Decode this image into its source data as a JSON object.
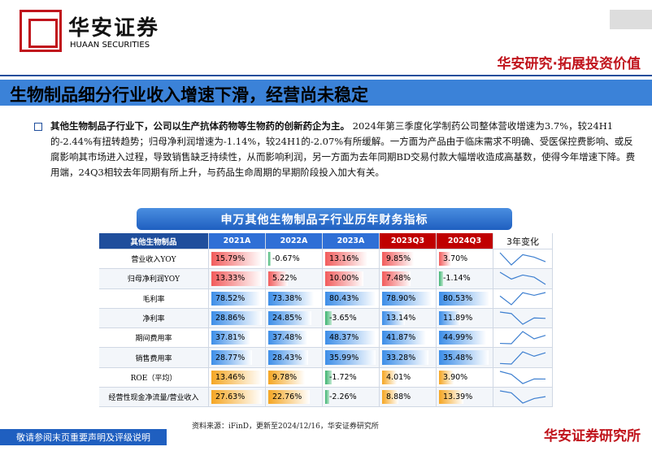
{
  "header": {
    "logo_cn": "华安证券",
    "logo_en": "HUAAN SECURITIES",
    "slogan": "华安研究·拓展投资价值"
  },
  "title": "生物制品细分行业收入增速下滑，经营尚未稳定",
  "paragraph": {
    "bold": "其他生物制品子行业下，公司以生产抗体药物等生物药的创新药企为主。",
    "text": "2024年第三季度化学制药公司整体营收增速为3.7%，较24H1的-2.44%有扭转趋势；归母净利润增速为-1.14%，较24H1的-2.07%有所缓解。一方面为产品由于临床需求不明确、受医保控费影响、或反腐影响其市场进入过程，导致销售缺乏持续性，从而影响利润，另一方面为去年同期BD交易付款大幅增收造成高基数，使得今年增速下降。费用端，24Q3相较去年同期有所上升，与药品生命周期的早期阶段投入加大有关。"
  },
  "table": {
    "title": "申万其他生物制品子行业历年财务指标",
    "columns": [
      "其他生物制品",
      "2021A",
      "2022A",
      "2023A",
      "2023Q3",
      "2024Q3",
      "3年变化"
    ],
    "rows": [
      {
        "name": "营业收入YOY",
        "values": [
          15.79,
          -0.67,
          13.16,
          9.85,
          3.7
        ],
        "value_labels": [
          "15.79%",
          "-0.67%",
          "13.16%",
          "9.85%",
          "3.70%"
        ]
      },
      {
        "name": "归母净利润YOY",
        "values": [
          13.33,
          5.22,
          10.0,
          7.48,
          -1.14
        ],
        "value_labels": [
          "13.33%",
          "5.22%",
          "10.00%",
          "7.48%",
          "-1.14%"
        ]
      },
      {
        "name": "毛利率",
        "values": [
          78.52,
          73.38,
          80.43,
          78.9,
          80.53
        ],
        "value_labels": [
          "78.52%",
          "73.38%",
          "80.43%",
          "78.90%",
          "80.53%"
        ]
      },
      {
        "name": "净利率",
        "values": [
          28.86,
          24.85,
          -3.65,
          13.14,
          11.89
        ],
        "value_labels": [
          "28.86%",
          "24.85%",
          "-3.65%",
          "13.14%",
          "11.89%"
        ]
      },
      {
        "name": "期间费用率",
        "values": [
          37.81,
          37.48,
          48.37,
          41.87,
          44.99
        ],
        "value_labels": [
          "37.81%",
          "37.48%",
          "48.37%",
          "41.87%",
          "44.99%"
        ]
      },
      {
        "name": "销售费用率",
        "values": [
          28.77,
          28.43,
          35.99,
          33.28,
          35.48
        ],
        "value_labels": [
          "28.77%",
          "28.43%",
          "35.99%",
          "33.28%",
          "35.48%"
        ]
      },
      {
        "name": "ROE（平均）",
        "values": [
          13.46,
          9.78,
          -1.72,
          4.01,
          3.9
        ],
        "value_labels": [
          "13.46%",
          "9.78%",
          "-1.72%",
          "4.01%",
          "3.90%"
        ]
      },
      {
        "name": "经营性现金净流量/营业收入",
        "values": [
          27.63,
          22.76,
          -2.26,
          8.88,
          13.39
        ],
        "value_labels": [
          "27.63%",
          "22.76%",
          "-2.26%",
          "8.88%",
          "13.39%"
        ]
      }
    ],
    "source": "资料来源：iFinD，更新至2024/12/16，华安证券研究所"
  },
  "footer": {
    "disclaimer": "敬请参阅末页重要声明及评级说明",
    "brand": "华安证券研究所"
  }
}
